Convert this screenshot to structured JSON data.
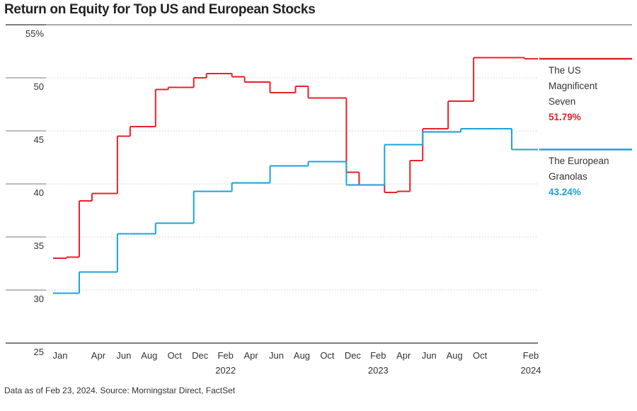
{
  "chart_data": {
    "type": "step-line",
    "title": "Return on Equity for Top US and European Stocks",
    "footnote": "Data as of Feb 23, 2024. Source: Morningstar Direct, FactSet",
    "categories": [
      "Jan",
      null,
      null,
      "Apr",
      null,
      "Jun",
      null,
      "Aug",
      null,
      "Oct",
      null,
      "Dec",
      null,
      "Feb",
      null,
      "Apr",
      null,
      "Jun",
      null,
      "Aug",
      null,
      "Oct",
      null,
      "Dec",
      null,
      "Feb",
      null,
      "Apr",
      null,
      "Jun",
      null,
      "Aug",
      null,
      "Oct",
      null,
      null,
      null,
      "Feb"
    ],
    "category_years": [
      null,
      null,
      null,
      null,
      null,
      null,
      null,
      null,
      null,
      null,
      null,
      null,
      null,
      "2022",
      null,
      null,
      null,
      null,
      null,
      null,
      null,
      null,
      null,
      null,
      null,
      "2023",
      null,
      null,
      null,
      null,
      null,
      null,
      null,
      null,
      null,
      null,
      null,
      "2024"
    ],
    "ylim": [
      25,
      55
    ],
    "yticks": [
      25,
      30,
      35,
      40,
      45,
      50,
      {
        "value": 55,
        "label": "55%"
      }
    ],
    "grid": true,
    "series": [
      {
        "name": "The US Magnificent Seven",
        "color": "#e8202a",
        "values": [
          33.0,
          33.1,
          38.4,
          39.1,
          39.1,
          44.5,
          45.4,
          45.4,
          48.9,
          49.1,
          49.1,
          50.0,
          50.4,
          50.4,
          50.1,
          49.6,
          49.6,
          48.6,
          48.6,
          49.2,
          48.1,
          48.1,
          48.1,
          41.1,
          39.9,
          39.9,
          39.2,
          39.3,
          42.2,
          45.2,
          45.2,
          47.8,
          47.8,
          51.9,
          51.9,
          51.9,
          51.9,
          51.79
        ],
        "value_labels": [
          null,
          null,
          null,
          null,
          null,
          null,
          null,
          null,
          null,
          null,
          null,
          null,
          null,
          null,
          null,
          null,
          null,
          null,
          null,
          null,
          null,
          null,
          null,
          null,
          null,
          null,
          null,
          null,
          null,
          null,
          null,
          null,
          null,
          null,
          null,
          null,
          null,
          "51.79%"
        ]
      },
      {
        "name": "The European Granolas",
        "color": "#1ba3d8",
        "values": [
          29.7,
          29.7,
          31.7,
          31.7,
          31.7,
          35.3,
          35.3,
          35.3,
          36.3,
          36.3,
          36.3,
          39.3,
          39.3,
          39.3,
          40.1,
          40.1,
          40.1,
          41.7,
          41.7,
          41.7,
          42.1,
          42.1,
          42.1,
          39.9,
          39.9,
          39.9,
          43.7,
          43.7,
          43.7,
          44.9,
          44.9,
          44.9,
          45.2,
          45.2,
          45.2,
          45.2,
          43.24,
          43.24
        ],
        "value_labels": [
          null,
          null,
          null,
          null,
          null,
          null,
          null,
          null,
          null,
          null,
          null,
          null,
          null,
          null,
          null,
          null,
          null,
          null,
          null,
          null,
          null,
          null,
          null,
          null,
          null,
          null,
          null,
          null,
          null,
          null,
          null,
          null,
          null,
          null,
          null,
          null,
          null,
          "43.24%"
        ]
      }
    ]
  }
}
